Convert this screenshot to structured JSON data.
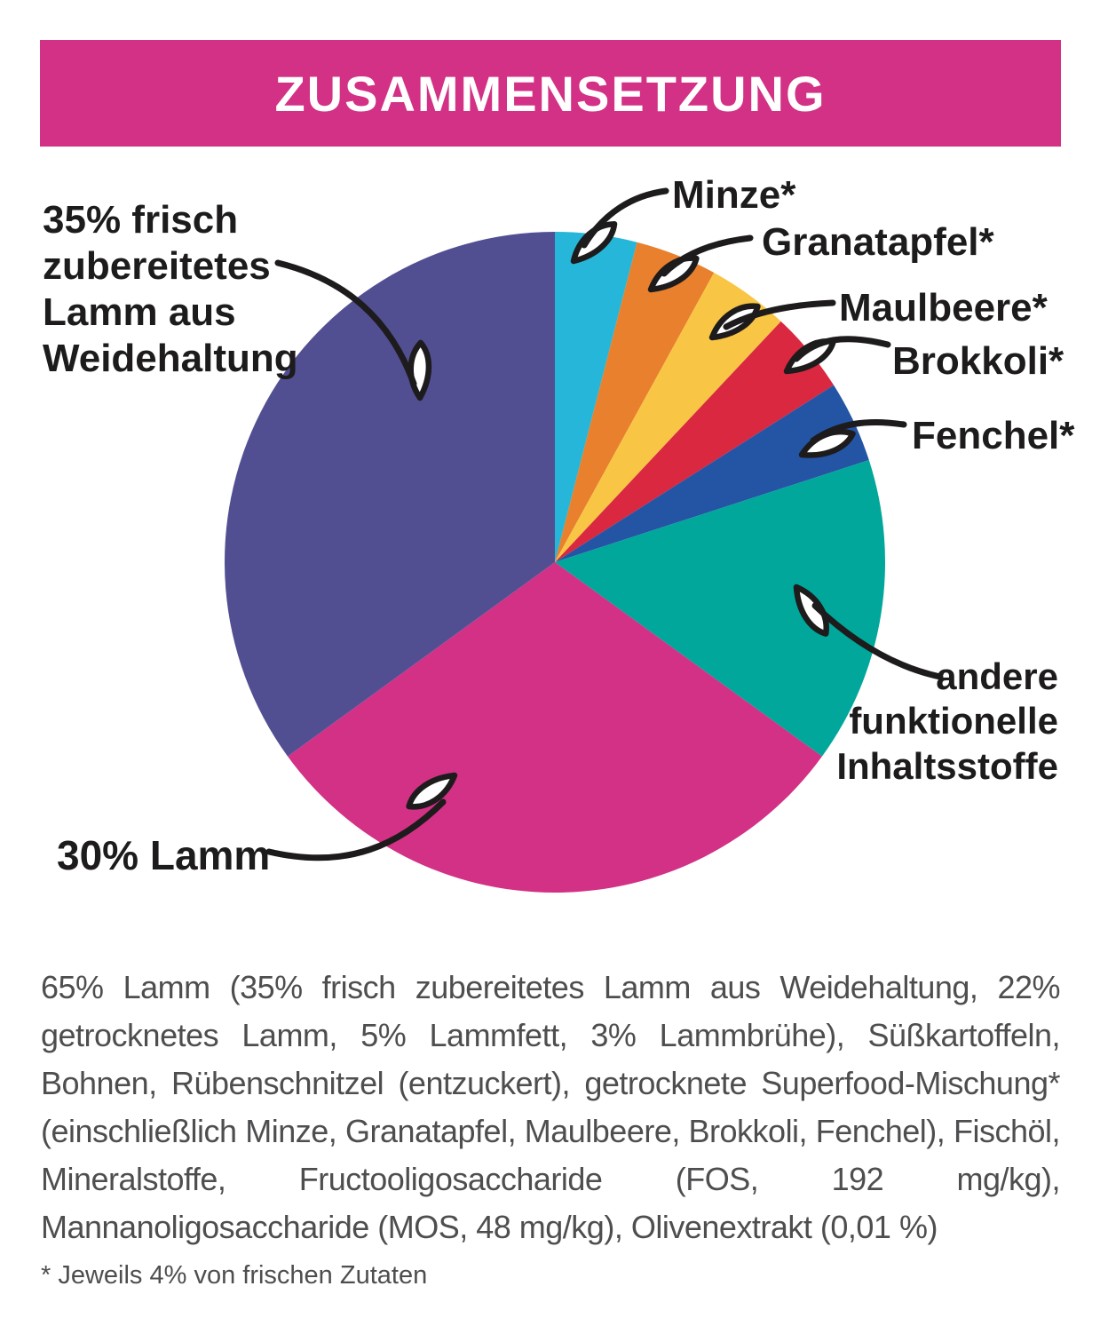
{
  "header": {
    "title": "ZUSAMMENSETZUNG",
    "bg_color": "#D23185",
    "text_color": "#FFFFFF"
  },
  "chart_data": {
    "type": "pie",
    "title": "Zusammensetzung",
    "start_angle_deg": 0,
    "direction": "clockwise",
    "legend_position": "callout-labels",
    "slices": [
      {
        "label": "Minze*",
        "value": 4,
        "color": "#25B6D9"
      },
      {
        "label": "Granatapfel*",
        "value": 4,
        "color": "#E8802D"
      },
      {
        "label": "Maulbeere*",
        "value": 4,
        "color": "#F9C544"
      },
      {
        "label": "Brokkoli*",
        "value": 4,
        "color": "#D92840"
      },
      {
        "label": "Fenchel*",
        "value": 4,
        "color": "#2355A4"
      },
      {
        "label": "andere funktionelle Inhaltsstoffe",
        "value": 15,
        "color": "#00A79A"
      },
      {
        "label": "30% Lamm",
        "value": 30,
        "color": "#D23185"
      },
      {
        "label": "35% frisch zubereitetes Lamm aus Weidehaltung",
        "value": 35,
        "color": "#514F92"
      }
    ]
  },
  "annotations": {
    "lamb_fresh": "35% frisch\nzubereitetes\nLamm aus\nWeidehaltung",
    "minze": "Minze*",
    "granatapfel": "Granatapfel*",
    "maulbeere": "Maulbeere*",
    "brokkoli": "Brokkoli*",
    "fenchel": "Fenchel*",
    "andere": "andere\nfunktionelle\nInhaltsstoffe",
    "lamm30": "30% Lamm"
  },
  "ingredients_paragraph": "65% Lamm (35% frisch zubereitetes Lamm aus Weidehaltung, 22% getrocknetes Lamm, 5% Lammfett, 3% Lammbrühe), Süßkartoffeln, Bohnen, Rübenschnitzel (entzuckert), getrocknete Superfood-Mischung* (einschließlich Minze, Granatapfel, Maulbeere, Brokkoli, Fenchel), Fischöl, Mineralstoffe, Fructooligosaccharide (FOS, 192 mg/kg), Mannanoligosaccharide (MOS, 48 mg/kg), Olivenextrakt (0,01 %)",
  "footnote": "* Jeweils 4% von frischen Zutaten"
}
